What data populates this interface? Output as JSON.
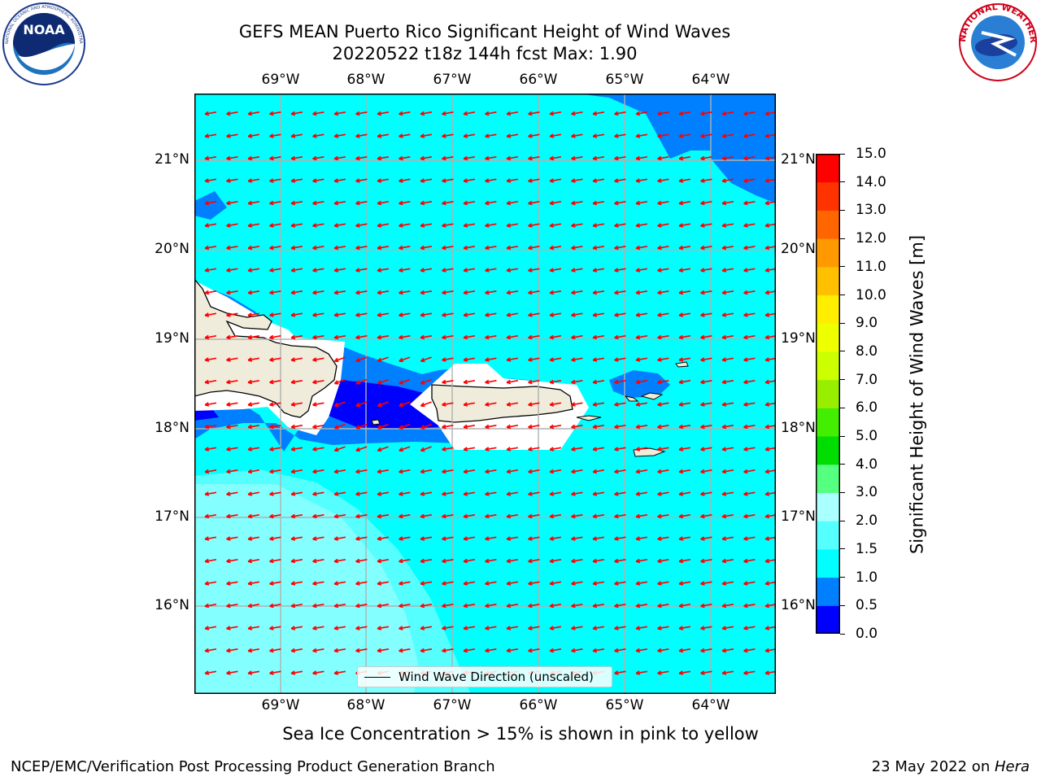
{
  "header": {
    "title_line1": "GEFS MEAN Puerto Rico Significant Height of Wind Waves",
    "title_line2": "20220522 t18z 144h fcst   Max: 1.90"
  },
  "map": {
    "lon_ticks": [
      "69°W",
      "68°W",
      "67°W",
      "66°W",
      "65°W",
      "64°W"
    ],
    "lat_ticks": [
      "21°N",
      "20°N",
      "19°N",
      "18°N",
      "17°N",
      "16°N"
    ],
    "colors": {
      "land": "#efecdc",
      "water_main": "#00ffff",
      "water_lightest": "#aaffff",
      "water_mid": "#55ffff",
      "water_dark": "#0080ff",
      "water_deep": "#0000ff",
      "no_data": "#ffffff",
      "arrow": "#ff0000",
      "grid": "#b0b0b0"
    },
    "legend": {
      "label": "Wind Wave Direction (unscaled)"
    }
  },
  "colorbar": {
    "title": "Significant Height of Wind Waves [m]",
    "levels": [
      "0.0",
      "0.5",
      "1.0",
      "1.5",
      "2.0",
      "3.0",
      "4.0",
      "5.0",
      "6.0",
      "7.0",
      "8.0",
      "9.0",
      "10.0",
      "11.0",
      "12.0",
      "13.0",
      "14.0",
      "15.0"
    ],
    "colors": [
      "#0000ff",
      "#0080ff",
      "#00ffff",
      "#55ffff",
      "#aaffff",
      "#55ff80",
      "#00dd00",
      "#44ee00",
      "#99ee00",
      "#ccff00",
      "#eeff00",
      "#ffee00",
      "#ffc000",
      "#ff9900",
      "#ff6600",
      "#ff3300",
      "#ff0000"
    ]
  },
  "subtitle": "Sea Ice Concentration > 15% is shown in pink to yellow",
  "footer": {
    "left": "NCEP/EMC/Verification Post Processing Product Generation Branch",
    "right_prefix": "23 May 2022 on ",
    "right_host": "Hera"
  },
  "logos": {
    "noaa_text": "NOAA",
    "noaa_ring": "NATIONAL OCEANIC AND ATMOSPHERIC ADMINISTRATION · U.S. DEPARTMENT OF COMMERCE",
    "nws_ring": "NATIONAL WEATHER SERVICE"
  }
}
